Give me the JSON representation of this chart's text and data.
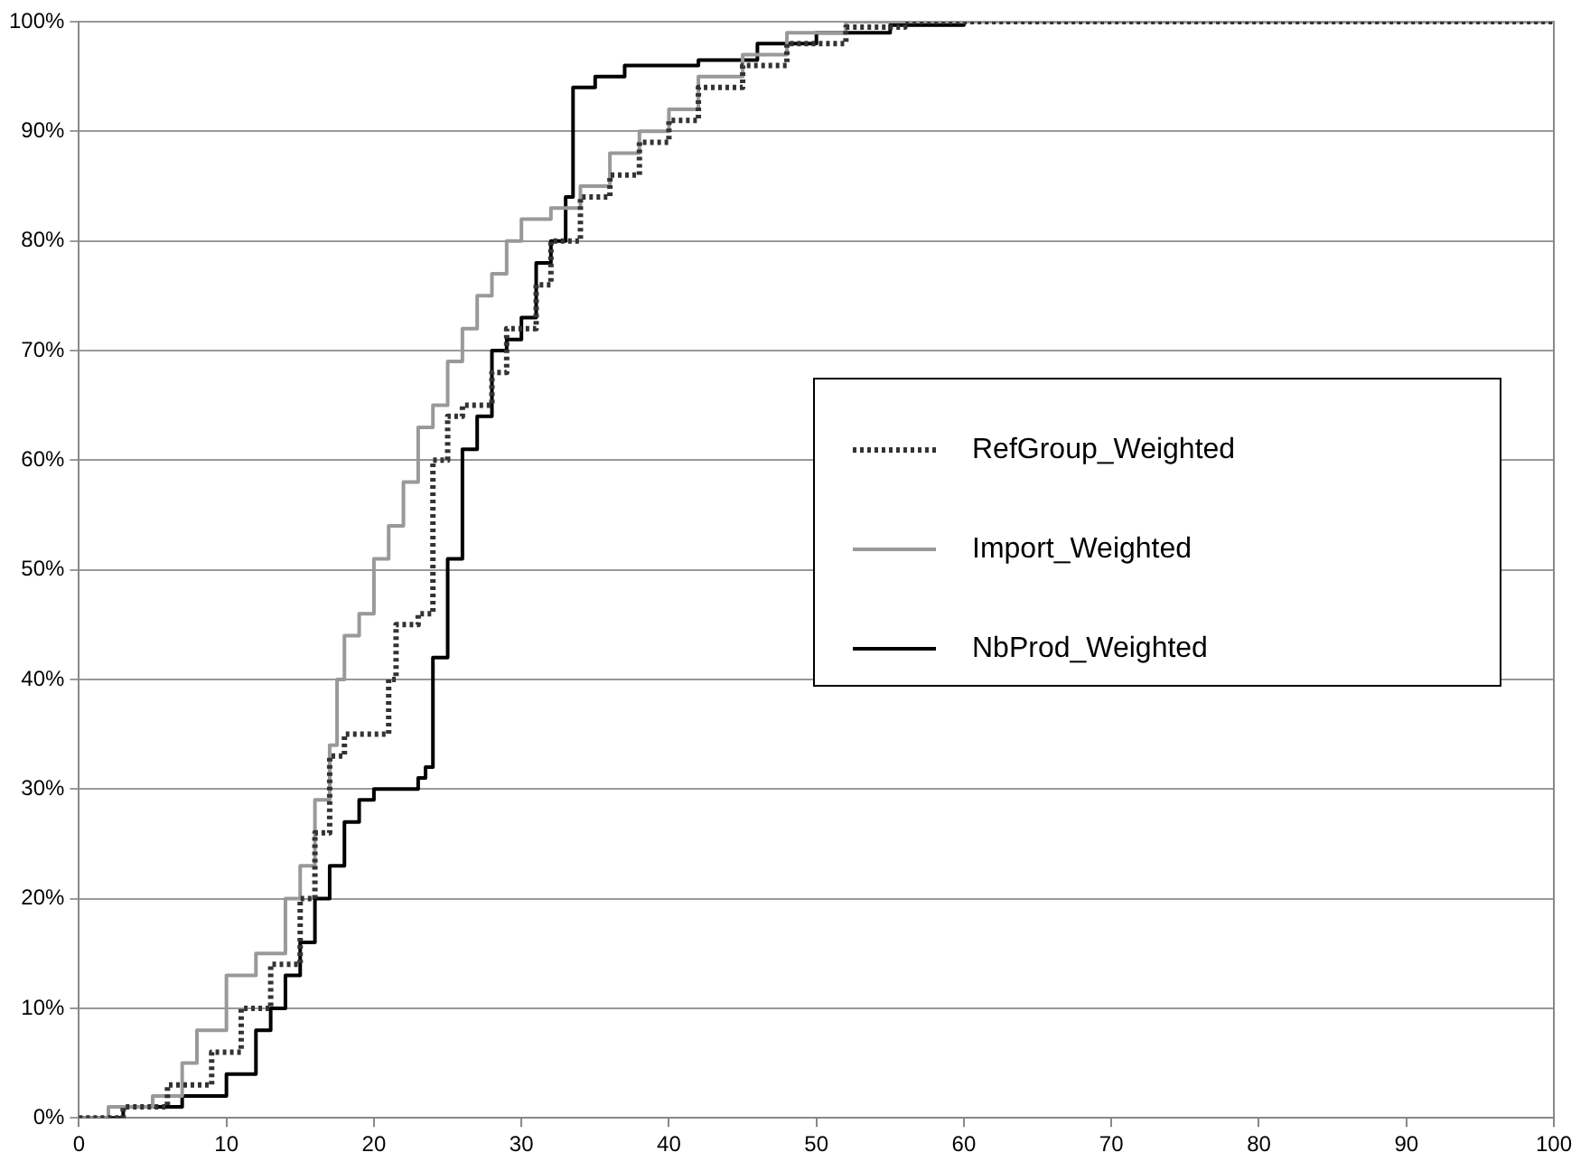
{
  "chart_data": {
    "type": "step",
    "xlim": [
      0,
      100
    ],
    "xticks": [
      0,
      10,
      20,
      30,
      40,
      50,
      60,
      70,
      80,
      90,
      100
    ],
    "ylim": [
      0,
      100
    ],
    "yticks": [
      {
        "value": 0,
        "label": "0%"
      },
      {
        "value": 10,
        "label": "10%"
      },
      {
        "value": 20,
        "label": "20%"
      },
      {
        "value": 30,
        "label": "30%"
      },
      {
        "value": 40,
        "label": "40%"
      },
      {
        "value": 50,
        "label": "50%"
      },
      {
        "value": 60,
        "label": "60%"
      },
      {
        "value": 70,
        "label": "70%"
      },
      {
        "value": 80,
        "label": "80%"
      },
      {
        "value": 90,
        "label": "90%"
      },
      {
        "value": 100,
        "label": "100%"
      }
    ],
    "grid": "y",
    "legend": "right",
    "marker": "none",
    "series": [
      {
        "name": "RefGroup_Weighted",
        "color": "#333333",
        "line_style": "dotted",
        "x": [
          0,
          3,
          6,
          9,
          11,
          13,
          15,
          16,
          17,
          18,
          21,
          21.5,
          23,
          24,
          25,
          26,
          28,
          29,
          31,
          32,
          34,
          36,
          38,
          40,
          42,
          45,
          48,
          52,
          56,
          100
        ],
        "values": [
          0,
          1,
          3,
          6,
          10,
          14,
          20,
          26,
          33,
          35,
          40,
          45,
          46,
          60,
          64,
          65,
          68,
          72,
          76,
          80,
          84,
          86,
          89,
          91,
          94,
          96,
          98,
          99.5,
          100,
          100
        ]
      },
      {
        "name": "Import_Weighted",
        "color": "#999999",
        "line_style": "solid",
        "x": [
          0,
          2,
          5,
          7,
          8,
          10,
          12,
          14,
          15,
          16,
          17,
          17.5,
          18,
          19,
          20,
          21,
          22,
          23,
          24,
          25,
          26,
          27,
          28,
          29,
          30,
          32,
          34,
          36,
          38,
          40,
          42,
          45,
          48,
          52,
          100
        ],
        "values": [
          0,
          1,
          2,
          5,
          8,
          13,
          15,
          20,
          23,
          29,
          34,
          40,
          44,
          46,
          51,
          54,
          58,
          63,
          65,
          69,
          72,
          75,
          77,
          80,
          82,
          83,
          85,
          88,
          90,
          92,
          95,
          97,
          99,
          100,
          100
        ]
      },
      {
        "name": "NbProd_Weighted",
        "color": "#000000",
        "line_style": "solid",
        "x": [
          0,
          3,
          7,
          10,
          12,
          13,
          14,
          15,
          16,
          17,
          18,
          19,
          20,
          23,
          23.5,
          24,
          25,
          26,
          27,
          28,
          29,
          30,
          31,
          32,
          33,
          33.5,
          35,
          37,
          42,
          46,
          50,
          55,
          60,
          100
        ],
        "values": [
          0,
          1,
          2,
          4,
          8,
          10,
          13,
          16,
          20,
          23,
          27,
          29,
          30,
          31,
          32,
          42,
          51,
          61,
          64,
          70,
          71,
          73,
          78,
          80,
          84,
          94,
          95,
          96,
          96.5,
          98,
          99,
          99.7,
          100,
          100
        ]
      }
    ]
  }
}
